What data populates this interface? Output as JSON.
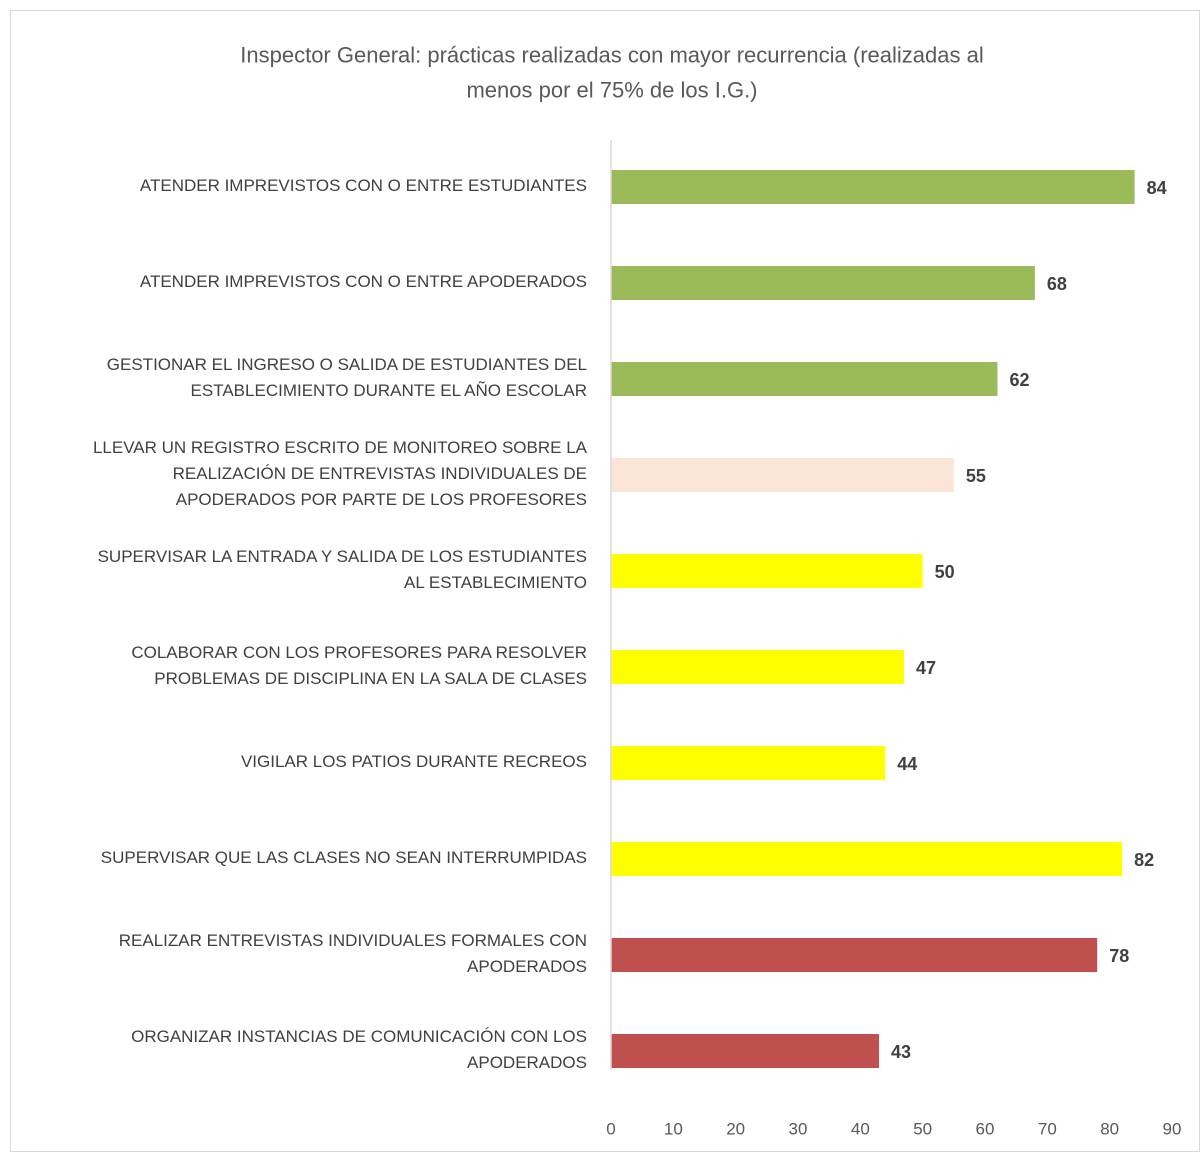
{
  "chart_data": {
    "type": "barh",
    "title": "Inspector General: prácticas realizadas con mayor recurrencia (realizadas al\nmenos por el 75% de los I.G.)",
    "categories": [
      "ATENDER IMPREVISTOS CON O ENTRE ESTUDIANTES",
      "ATENDER IMPREVISTOS CON O ENTRE APODERADOS",
      "GESTIONAR EL INGRESO O SALIDA DE ESTUDIANTES DEL\nESTABLECIMIENTO DURANTE EL AÑO ESCOLAR",
      "LLEVAR UN REGISTRO ESCRITO DE MONITOREO SOBRE LA\nREALIZACIÓN DE ENTREVISTAS INDIVIDUALES DE\nAPODERADOS POR PARTE DE LOS PROFESORES",
      "SUPERVISAR LA ENTRADA Y SALIDA DE LOS ESTUDIANTES\nAL ESTABLECIMIENTO",
      "COLABORAR CON LOS PROFESORES PARA RESOLVER\nPROBLEMAS DE DISCIPLINA EN LA SALA DE CLASES",
      "VIGILAR LOS PATIOS DURANTE RECREOS",
      "SUPERVISAR QUE LAS CLASES NO SEAN INTERRUMPIDAS",
      "REALIZAR ENTREVISTAS INDIVIDUALES FORMALES CON\nAPODERADOS",
      "ORGANIZAR INSTANCIAS DE COMUNICACIÓN CON LOS\nAPODERADOS"
    ],
    "values": [
      84,
      68,
      62,
      55,
      50,
      47,
      44,
      82,
      78,
      43
    ],
    "colors": [
      "#9bbb59",
      "#9bbb59",
      "#9bbb59",
      "#fbe5d6",
      "#ffff00",
      "#ffff00",
      "#ffff00",
      "#ffff00",
      "#c0504d",
      "#c0504d"
    ],
    "xlim": [
      0,
      90
    ],
    "xticks": [
      0,
      10,
      20,
      30,
      40,
      50,
      60,
      70,
      80,
      90
    ],
    "grid": false
  }
}
